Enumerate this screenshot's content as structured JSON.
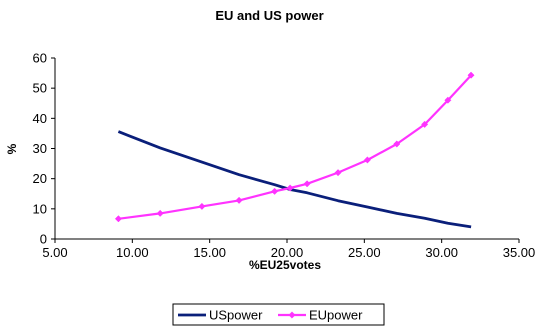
{
  "chart_data": {
    "type": "line",
    "title": "EU and US power",
    "xlabel": "%EU25votes",
    "ylabel": "%",
    "xlim": [
      5,
      35
    ],
    "ylim": [
      0,
      60
    ],
    "x_ticks": [
      "5.00",
      "10.00",
      "15.00",
      "20.00",
      "25.00",
      "30.00",
      "35.00"
    ],
    "y_ticks": [
      "0",
      "10",
      "20",
      "30",
      "40",
      "50",
      "60"
    ],
    "grid": false,
    "legend_position": "bottom",
    "series": [
      {
        "name": "USpower",
        "color": "#0a1f7a",
        "marker": "none",
        "x": [
          9.1,
          11.8,
          14.5,
          16.9,
          19.2,
          20.2,
          21.3,
          23.3,
          25.2,
          27.1,
          28.9,
          30.4,
          31.9
        ],
        "y": [
          35.6,
          30.2,
          25.5,
          21.3,
          18.0,
          16.4,
          15.3,
          12.7,
          10.6,
          8.5,
          6.9,
          5.2,
          4.0
        ]
      },
      {
        "name": "EUpower",
        "color": "#ff33ff",
        "marker": "diamond",
        "x": [
          9.1,
          11.8,
          14.5,
          16.9,
          19.2,
          20.2,
          21.3,
          23.3,
          25.2,
          27.1,
          28.9,
          30.4,
          31.9
        ],
        "y": [
          6.7,
          8.5,
          10.8,
          12.8,
          15.8,
          16.9,
          18.3,
          22.0,
          26.2,
          31.5,
          38.0,
          46.0,
          54.3
        ]
      }
    ]
  }
}
